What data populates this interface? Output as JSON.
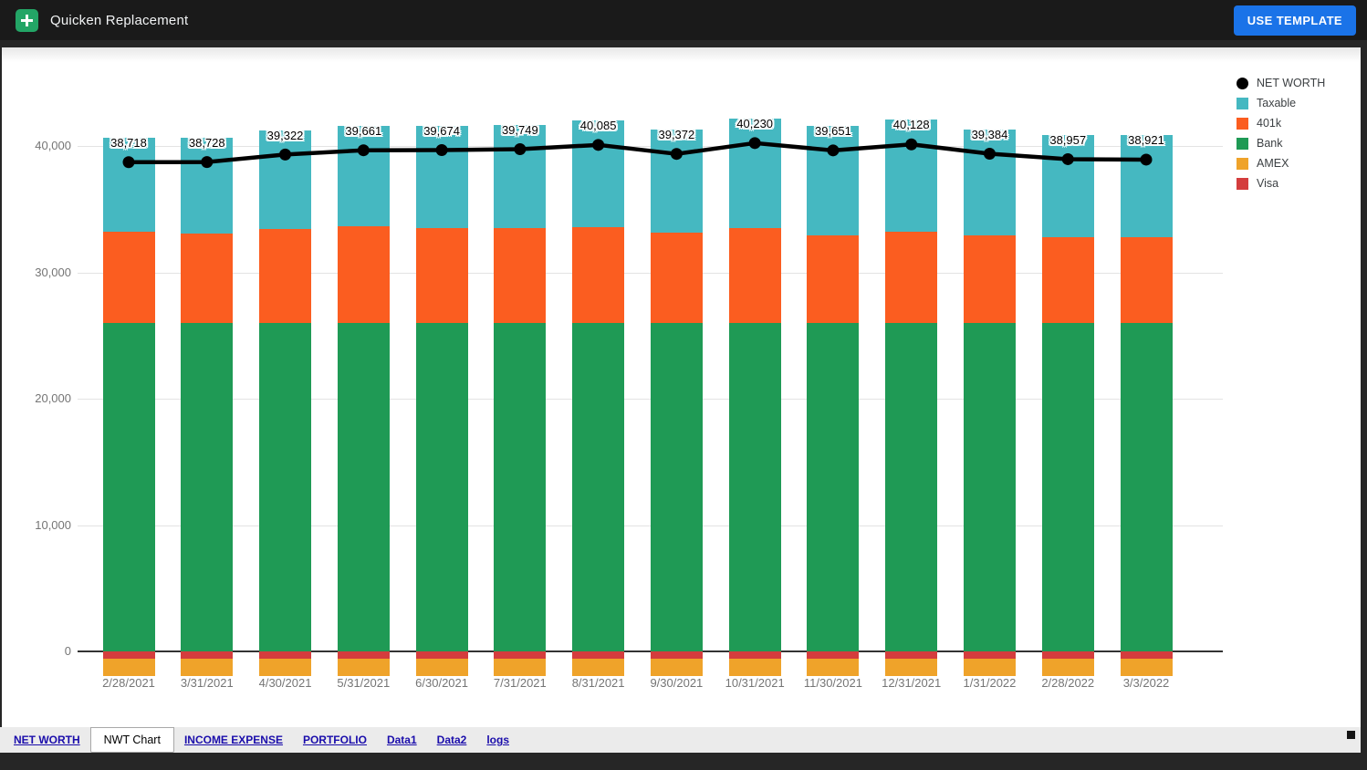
{
  "header": {
    "title": "Quicken Replacement",
    "use_template_label": "USE TEMPLATE",
    "logo_icon": "sheets-logo-icon",
    "button_color": "#1a73e8",
    "background_color": "#1a1a1a"
  },
  "chart_data": {
    "type": "combo-stacked-bar-line",
    "title": "",
    "grid": true,
    "legend_position": "right",
    "ylim": [
      -2500,
      43500
    ],
    "y_ticks": [
      0,
      10000,
      20000,
      30000,
      40000
    ],
    "y_tick_labels": [
      "0",
      "10,000",
      "20,000",
      "30,000",
      "40,000"
    ],
    "categories": [
      "2/28/2021",
      "3/31/2021",
      "4/30/2021",
      "5/31/2021",
      "6/30/2021",
      "7/31/2021",
      "8/31/2021",
      "9/30/2021",
      "10/31/2021",
      "11/30/2021",
      "12/31/2021",
      "1/31/2022",
      "2/28/2022",
      "3/3/2022"
    ],
    "series": [
      {
        "name": "NET WORTH",
        "type": "line",
        "color": "#000000",
        "values": [
          38718,
          38728,
          39322,
          39661,
          39674,
          39749,
          40085,
          39372,
          40230,
          39651,
          40128,
          39384,
          38957,
          38921
        ]
      },
      {
        "name": "Taxable",
        "type": "bar",
        "color": "#45b8c1",
        "values": [
          7438,
          7588,
          7822,
          7921,
          8084,
          8199,
          8465,
          8162,
          8680,
          8631,
          8868,
          8414,
          8107,
          8071
        ]
      },
      {
        "name": "401k",
        "type": "bar",
        "color": "#fb5d20",
        "values": [
          7210,
          7070,
          7430,
          7670,
          7520,
          7480,
          7550,
          7140,
          7480,
          6950,
          7190,
          6900,
          6780,
          6780
        ]
      },
      {
        "name": "Bank",
        "type": "bar",
        "color": "#1f9a55",
        "values": [
          26000,
          26000,
          26000,
          26000,
          26000,
          26000,
          26000,
          26000,
          26000,
          26000,
          26000,
          26000,
          26000,
          26000
        ]
      },
      {
        "name": "AMEX",
        "type": "bar",
        "color": "#efa32a",
        "values": [
          -1330,
          -1330,
          -1330,
          -1330,
          -1330,
          -1330,
          -1330,
          -1330,
          -1330,
          -1330,
          -1330,
          -1330,
          -1330,
          -1330
        ]
      },
      {
        "name": "Visa",
        "type": "bar",
        "color": "#d43d3d",
        "values": [
          -600,
          -600,
          -600,
          -600,
          -600,
          -600,
          -600,
          -600,
          -600,
          -600,
          -600,
          -600,
          -600,
          -600
        ]
      }
    ],
    "stack_order_positive": [
      "Bank",
      "401k",
      "Taxable"
    ],
    "stack_order_negative": [
      "Visa",
      "AMEX"
    ],
    "data_labels": [
      "38,718",
      "38,728",
      "39,322",
      "39,661",
      "39,674",
      "39,749",
      "40,085",
      "39,372",
      "40,230",
      "39,651",
      "40,128",
      "39,384",
      "38,957",
      "38,921"
    ],
    "axis_text_color": "#757575",
    "grid_color": "#e3e3e3",
    "zero_line_color": "#333333"
  },
  "sheet_tabs": {
    "background_color": "#ebebeb",
    "link_color": "#1a0dab",
    "items": [
      {
        "label": "NET WORTH",
        "active": false
      },
      {
        "label": "NWT Chart",
        "active": true
      },
      {
        "label": "INCOME EXPENSE",
        "active": false
      },
      {
        "label": "PORTFOLIO",
        "active": false
      },
      {
        "label": "Data1",
        "active": false
      },
      {
        "label": "Data2",
        "active": false
      },
      {
        "label": "logs",
        "active": false
      }
    ]
  }
}
